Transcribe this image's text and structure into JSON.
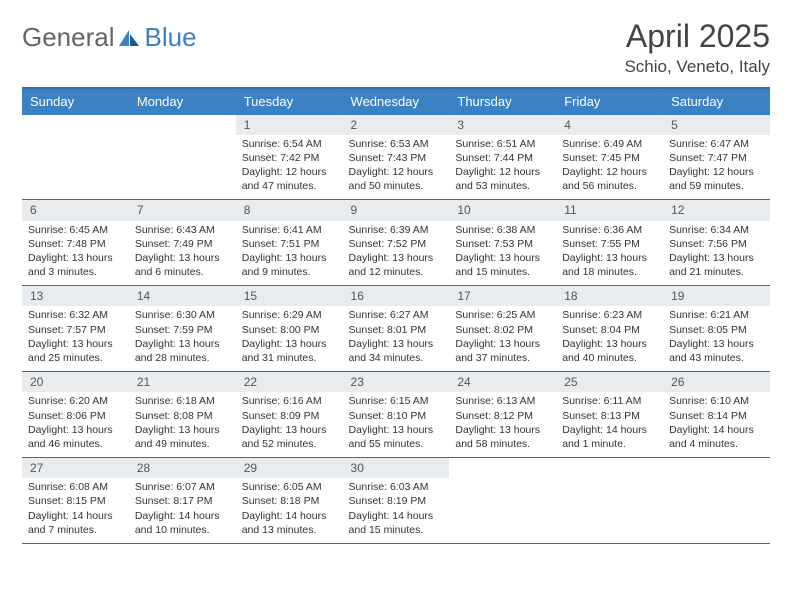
{
  "logo": {
    "part1": "General",
    "part2": "Blue"
  },
  "title": "April 2025",
  "subtitle": "Schio, Veneto, Italy",
  "colors": {
    "header_bg": "#3b82c4",
    "border": "#2d6fb0",
    "daynum_bg": "#e8ecef",
    "text": "#333333"
  },
  "dayHeaders": [
    "Sunday",
    "Monday",
    "Tuesday",
    "Wednesday",
    "Thursday",
    "Friday",
    "Saturday"
  ],
  "weeks": [
    [
      {
        "n": "",
        "lines": []
      },
      {
        "n": "",
        "lines": []
      },
      {
        "n": "1",
        "lines": [
          "Sunrise: 6:54 AM",
          "Sunset: 7:42 PM",
          "Daylight: 12 hours",
          "and 47 minutes."
        ]
      },
      {
        "n": "2",
        "lines": [
          "Sunrise: 6:53 AM",
          "Sunset: 7:43 PM",
          "Daylight: 12 hours",
          "and 50 minutes."
        ]
      },
      {
        "n": "3",
        "lines": [
          "Sunrise: 6:51 AM",
          "Sunset: 7:44 PM",
          "Daylight: 12 hours",
          "and 53 minutes."
        ]
      },
      {
        "n": "4",
        "lines": [
          "Sunrise: 6:49 AM",
          "Sunset: 7:45 PM",
          "Daylight: 12 hours",
          "and 56 minutes."
        ]
      },
      {
        "n": "5",
        "lines": [
          "Sunrise: 6:47 AM",
          "Sunset: 7:47 PM",
          "Daylight: 12 hours",
          "and 59 minutes."
        ]
      }
    ],
    [
      {
        "n": "6",
        "lines": [
          "Sunrise: 6:45 AM",
          "Sunset: 7:48 PM",
          "Daylight: 13 hours",
          "and 3 minutes."
        ]
      },
      {
        "n": "7",
        "lines": [
          "Sunrise: 6:43 AM",
          "Sunset: 7:49 PM",
          "Daylight: 13 hours",
          "and 6 minutes."
        ]
      },
      {
        "n": "8",
        "lines": [
          "Sunrise: 6:41 AM",
          "Sunset: 7:51 PM",
          "Daylight: 13 hours",
          "and 9 minutes."
        ]
      },
      {
        "n": "9",
        "lines": [
          "Sunrise: 6:39 AM",
          "Sunset: 7:52 PM",
          "Daylight: 13 hours",
          "and 12 minutes."
        ]
      },
      {
        "n": "10",
        "lines": [
          "Sunrise: 6:38 AM",
          "Sunset: 7:53 PM",
          "Daylight: 13 hours",
          "and 15 minutes."
        ]
      },
      {
        "n": "11",
        "lines": [
          "Sunrise: 6:36 AM",
          "Sunset: 7:55 PM",
          "Daylight: 13 hours",
          "and 18 minutes."
        ]
      },
      {
        "n": "12",
        "lines": [
          "Sunrise: 6:34 AM",
          "Sunset: 7:56 PM",
          "Daylight: 13 hours",
          "and 21 minutes."
        ]
      }
    ],
    [
      {
        "n": "13",
        "lines": [
          "Sunrise: 6:32 AM",
          "Sunset: 7:57 PM",
          "Daylight: 13 hours",
          "and 25 minutes."
        ]
      },
      {
        "n": "14",
        "lines": [
          "Sunrise: 6:30 AM",
          "Sunset: 7:59 PM",
          "Daylight: 13 hours",
          "and 28 minutes."
        ]
      },
      {
        "n": "15",
        "lines": [
          "Sunrise: 6:29 AM",
          "Sunset: 8:00 PM",
          "Daylight: 13 hours",
          "and 31 minutes."
        ]
      },
      {
        "n": "16",
        "lines": [
          "Sunrise: 6:27 AM",
          "Sunset: 8:01 PM",
          "Daylight: 13 hours",
          "and 34 minutes."
        ]
      },
      {
        "n": "17",
        "lines": [
          "Sunrise: 6:25 AM",
          "Sunset: 8:02 PM",
          "Daylight: 13 hours",
          "and 37 minutes."
        ]
      },
      {
        "n": "18",
        "lines": [
          "Sunrise: 6:23 AM",
          "Sunset: 8:04 PM",
          "Daylight: 13 hours",
          "and 40 minutes."
        ]
      },
      {
        "n": "19",
        "lines": [
          "Sunrise: 6:21 AM",
          "Sunset: 8:05 PM",
          "Daylight: 13 hours",
          "and 43 minutes."
        ]
      }
    ],
    [
      {
        "n": "20",
        "lines": [
          "Sunrise: 6:20 AM",
          "Sunset: 8:06 PM",
          "Daylight: 13 hours",
          "and 46 minutes."
        ]
      },
      {
        "n": "21",
        "lines": [
          "Sunrise: 6:18 AM",
          "Sunset: 8:08 PM",
          "Daylight: 13 hours",
          "and 49 minutes."
        ]
      },
      {
        "n": "22",
        "lines": [
          "Sunrise: 6:16 AM",
          "Sunset: 8:09 PM",
          "Daylight: 13 hours",
          "and 52 minutes."
        ]
      },
      {
        "n": "23",
        "lines": [
          "Sunrise: 6:15 AM",
          "Sunset: 8:10 PM",
          "Daylight: 13 hours",
          "and 55 minutes."
        ]
      },
      {
        "n": "24",
        "lines": [
          "Sunrise: 6:13 AM",
          "Sunset: 8:12 PM",
          "Daylight: 13 hours",
          "and 58 minutes."
        ]
      },
      {
        "n": "25",
        "lines": [
          "Sunrise: 6:11 AM",
          "Sunset: 8:13 PM",
          "Daylight: 14 hours",
          "and 1 minute."
        ]
      },
      {
        "n": "26",
        "lines": [
          "Sunrise: 6:10 AM",
          "Sunset: 8:14 PM",
          "Daylight: 14 hours",
          "and 4 minutes."
        ]
      }
    ],
    [
      {
        "n": "27",
        "lines": [
          "Sunrise: 6:08 AM",
          "Sunset: 8:15 PM",
          "Daylight: 14 hours",
          "and 7 minutes."
        ]
      },
      {
        "n": "28",
        "lines": [
          "Sunrise: 6:07 AM",
          "Sunset: 8:17 PM",
          "Daylight: 14 hours",
          "and 10 minutes."
        ]
      },
      {
        "n": "29",
        "lines": [
          "Sunrise: 6:05 AM",
          "Sunset: 8:18 PM",
          "Daylight: 14 hours",
          "and 13 minutes."
        ]
      },
      {
        "n": "30",
        "lines": [
          "Sunrise: 6:03 AM",
          "Sunset: 8:19 PM",
          "Daylight: 14 hours",
          "and 15 minutes."
        ]
      },
      {
        "n": "",
        "lines": []
      },
      {
        "n": "",
        "lines": []
      },
      {
        "n": "",
        "lines": []
      }
    ]
  ]
}
